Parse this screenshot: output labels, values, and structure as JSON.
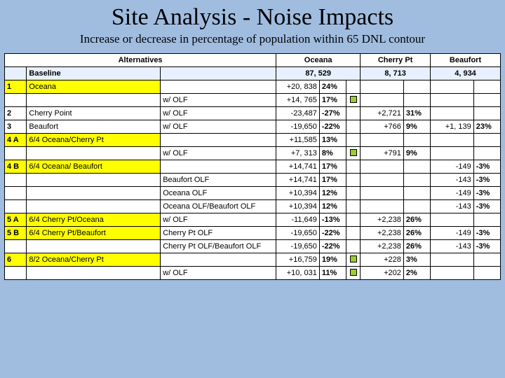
{
  "title": "Site Analysis - Noise Impacts",
  "subtitle": "Increase or decrease in percentage of population within 65 DNL contour",
  "colors": {
    "page_bg": "#a0bde0",
    "highlight": "#ffff00",
    "baseline_bg": "#e8f0ff",
    "marker_good": "#9acd32",
    "border": "#000000"
  },
  "headers": {
    "alternatives": "Alternatives",
    "oceana": "Oceana",
    "cherry": "Cherry Pt",
    "beaufort": "Beaufort",
    "baseline": "Baseline"
  },
  "baseline": {
    "oceana": "87, 529",
    "cherry": "8, 713",
    "beaufort": "4, 934"
  },
  "rows": [
    {
      "id": "1",
      "alt": "Oceana",
      "olf": "",
      "hl": true,
      "o_val": "+20, 838",
      "o_pct": "24%",
      "o_ico": "",
      "c_val": "",
      "c_pct": "",
      "b_val": "",
      "b_pct": ""
    },
    {
      "id": "",
      "alt": "",
      "olf": "w/ OLF",
      "hl": false,
      "o_val": "+14, 765",
      "o_pct": "17%",
      "o_ico": "green",
      "c_val": "",
      "c_pct": "",
      "b_val": "",
      "b_pct": ""
    },
    {
      "id": "2",
      "alt": "Cherry Point",
      "olf": "w/ OLF",
      "hl": false,
      "o_val": "-23,487",
      "o_pct": "-27%",
      "o_ico": "",
      "c_val": "+2,721",
      "c_pct": "31%",
      "b_val": "",
      "b_pct": ""
    },
    {
      "id": "3",
      "alt": "Beaufort",
      "olf": "w/ OLF",
      "hl": false,
      "o_val": "-19,650",
      "o_pct": "-22%",
      "o_ico": "",
      "c_val": "+766",
      "c_pct": "9%",
      "b_val": "+1, 139",
      "b_pct": "23%"
    },
    {
      "id": "4 A",
      "alt": "6/4 Oceana/Cherry Pt",
      "olf": "",
      "hl": true,
      "o_val": "+11,585",
      "o_pct": "13%",
      "o_ico": "",
      "c_val": "",
      "c_pct": "",
      "b_val": "",
      "b_pct": ""
    },
    {
      "id": "",
      "alt": "",
      "olf": "w/ OLF",
      "hl": false,
      "o_val": "+7, 313",
      "o_pct": "8%",
      "o_ico": "green",
      "c_val": "+791",
      "c_pct": "9%",
      "b_val": "",
      "b_pct": ""
    },
    {
      "id": "4 B",
      "alt": "6/4 Oceana/ Beaufort",
      "olf": "",
      "hl": true,
      "o_val": "+14,741",
      "o_pct": "17%",
      "o_ico": "",
      "c_val": "",
      "c_pct": "",
      "b_val": "-149",
      "b_pct": "-3%"
    },
    {
      "id": "",
      "alt": "",
      "olf": "Beaufort OLF",
      "hl": false,
      "o_val": "+14,741",
      "o_pct": "17%",
      "o_ico": "",
      "c_val": "",
      "c_pct": "",
      "b_val": "-143",
      "b_pct": "-3%"
    },
    {
      "id": "",
      "alt": "",
      "olf": "Oceana OLF",
      "hl": false,
      "o_val": "+10,394",
      "o_pct": "12%",
      "o_ico": "",
      "c_val": "",
      "c_pct": "",
      "b_val": "-149",
      "b_pct": "-3%"
    },
    {
      "id": "",
      "alt": "",
      "olf": "Oceana OLF/Beaufort OLF",
      "hl": false,
      "o_val": "+10,394",
      "o_pct": "12%",
      "o_ico": "",
      "c_val": "",
      "c_pct": "",
      "b_val": "-143",
      "b_pct": "-3%"
    },
    {
      "id": "5 A",
      "alt": "6/4 Cherry Pt/Oceana",
      "olf": "w/ OLF",
      "hl": true,
      "o_val": "-11,649",
      "o_pct": "-13%",
      "o_ico": "",
      "c_val": "+2,238",
      "c_pct": "26%",
      "b_val": "",
      "b_pct": ""
    },
    {
      "id": "5 B",
      "alt": "6/4 Cherry Pt/Beaufort",
      "olf": "Cherry Pt OLF",
      "hl": true,
      "o_val": "-19,650",
      "o_pct": "-22%",
      "o_ico": "",
      "c_val": "+2,238",
      "c_pct": "26%",
      "b_val": "-149",
      "b_pct": "-3%"
    },
    {
      "id": "",
      "alt": "",
      "olf": "Cherry Pt OLF/Beaufort OLF",
      "hl": false,
      "o_val": "-19,650",
      "o_pct": "-22%",
      "o_ico": "",
      "c_val": "+2,238",
      "c_pct": "26%",
      "b_val": "-143",
      "b_pct": "-3%"
    },
    {
      "id": "6",
      "alt": "8/2 Oceana/Cherry Pt",
      "olf": "",
      "hl": true,
      "o_val": "+16,759",
      "o_pct": "19%",
      "o_ico": "green",
      "c_val": "+228",
      "c_pct": "3%",
      "b_val": "",
      "b_pct": ""
    },
    {
      "id": "",
      "alt": "",
      "olf": "w/ OLF",
      "hl": false,
      "o_val": "+10, 031",
      "o_pct": "11%",
      "o_ico": "green",
      "c_val": "+202",
      "c_pct": "2%",
      "b_val": "",
      "b_pct": ""
    }
  ]
}
